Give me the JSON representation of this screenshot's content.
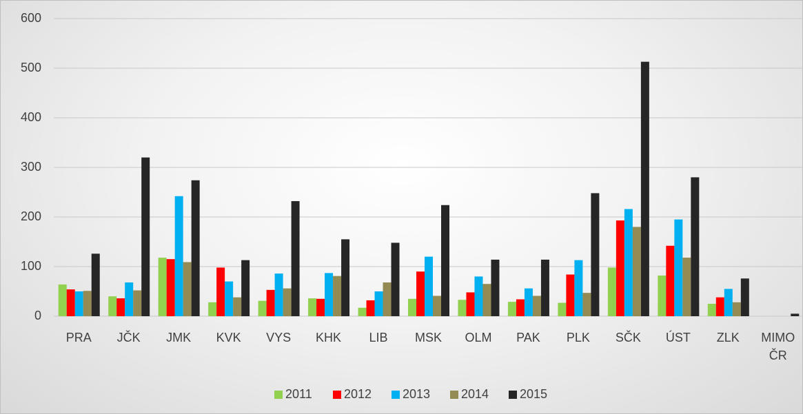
{
  "chart_data": {
    "type": "bar",
    "categories": [
      "PRA",
      "JČK",
      "JMK",
      "KVK",
      "VYS",
      "KHK",
      "LIB",
      "MSK",
      "OLM",
      "PAK",
      "PLK",
      "SČK",
      "ÚST",
      "ZLK",
      "MIMO ČR"
    ],
    "series": [
      {
        "name": "2011",
        "color": "#92d050",
        "values": [
          64,
          40,
          118,
          28,
          31,
          36,
          17,
          35,
          33,
          29,
          27,
          98,
          82,
          25,
          0
        ]
      },
      {
        "name": "2012",
        "color": "#ff0000",
        "values": [
          54,
          36,
          115,
          98,
          53,
          35,
          32,
          90,
          48,
          34,
          84,
          193,
          142,
          38,
          0
        ]
      },
      {
        "name": "2013",
        "color": "#00b0f0",
        "values": [
          50,
          68,
          242,
          70,
          86,
          87,
          50,
          120,
          80,
          56,
          113,
          216,
          195,
          55,
          0
        ]
      },
      {
        "name": "2014",
        "color": "#948a54",
        "values": [
          51,
          52,
          109,
          38,
          56,
          81,
          68,
          41,
          65,
          41,
          47,
          180,
          118,
          28,
          0
        ]
      },
      {
        "name": "2015",
        "color": "#262626",
        "values": [
          126,
          320,
          274,
          113,
          232,
          155,
          148,
          224,
          114,
          114,
          248,
          513,
          280,
          76,
          5
        ]
      }
    ],
    "ylim": [
      0,
      600
    ],
    "yticks": [
      0,
      100,
      200,
      300,
      400,
      500,
      600
    ],
    "grid": true,
    "legend": "bottom"
  }
}
